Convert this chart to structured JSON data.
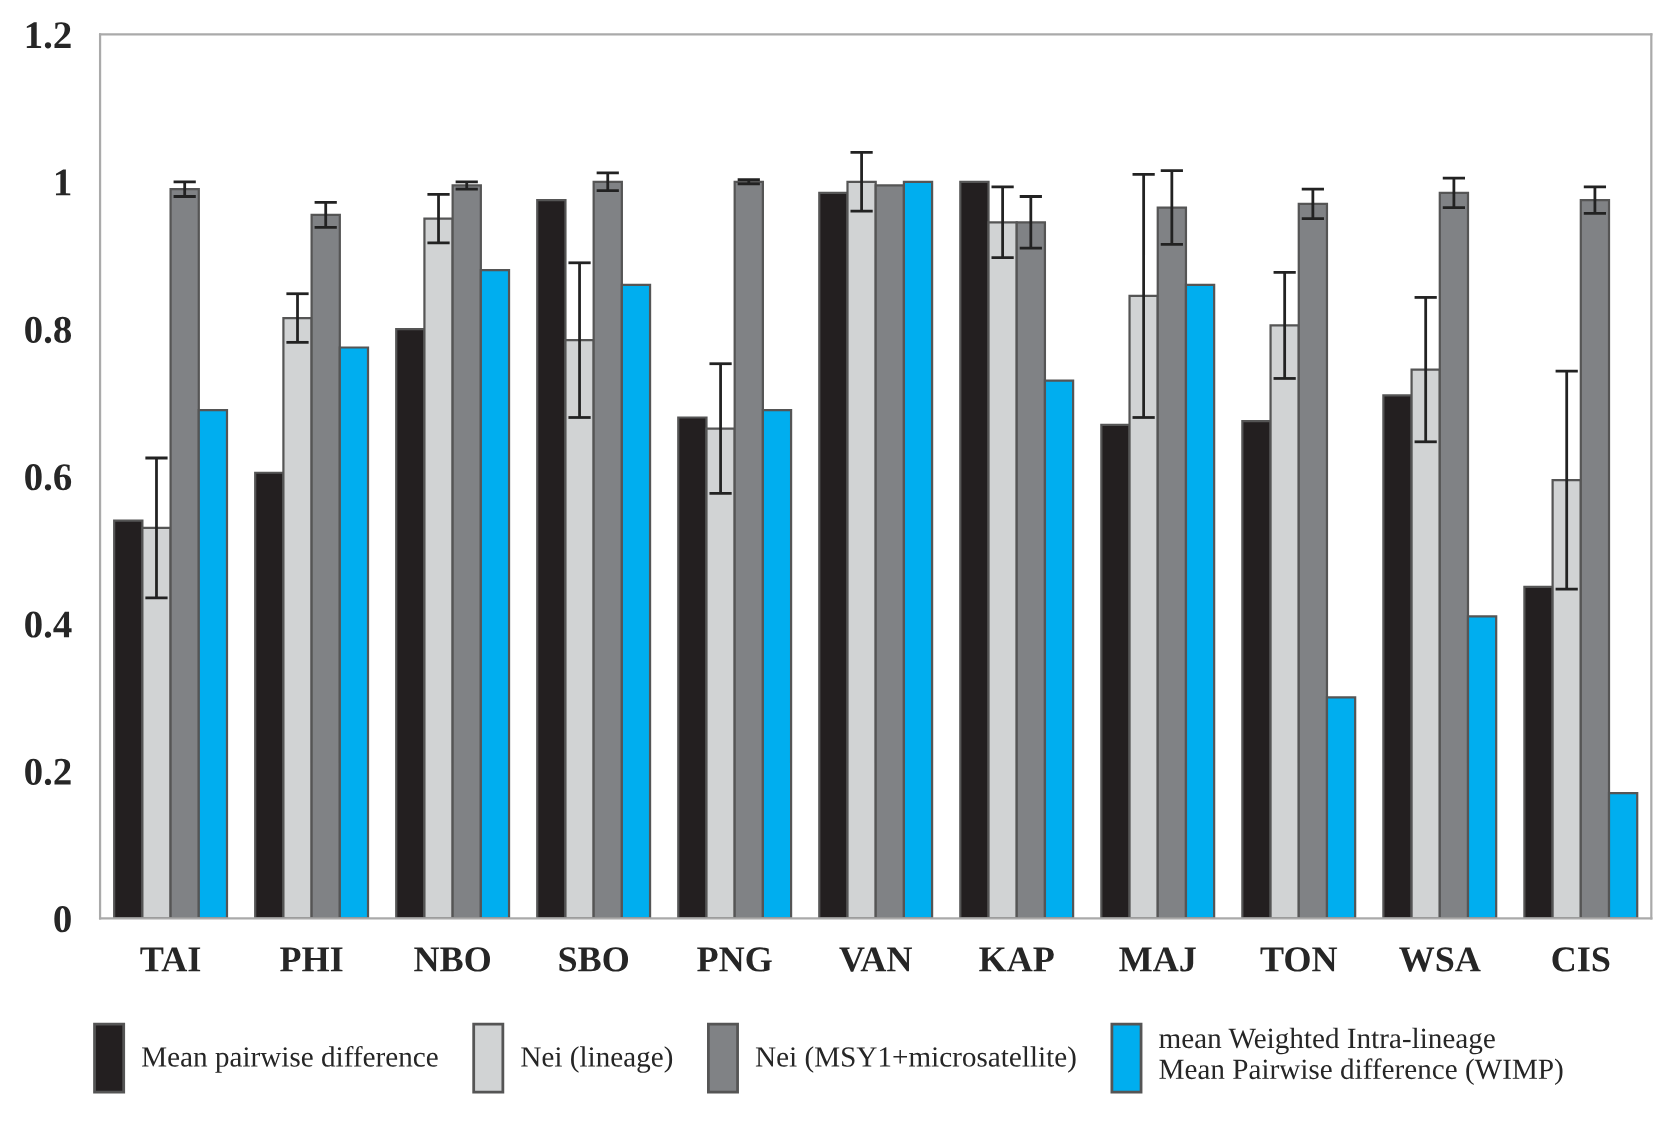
{
  "chart_data": {
    "type": "bar",
    "categories": [
      "TAI",
      "PHI",
      "NBO",
      "SBO",
      "PNG",
      "VAN",
      "KAP",
      "MAJ",
      "TON",
      "WSA",
      "CIS"
    ],
    "series": [
      {
        "name": "Mean pairwise difference",
        "color": "#231f20",
        "values": [
          0.54,
          0.605,
          0.8,
          0.975,
          0.68,
          0.985,
          1.0,
          0.67,
          0.675,
          0.71,
          0.45
        ]
      },
      {
        "name": "Nei (lineage)",
        "color": "#d1d3d4",
        "values": [
          0.53,
          0.815,
          0.95,
          0.785,
          0.665,
          1.0,
          0.945,
          0.845,
          0.805,
          0.745,
          0.595
        ],
        "errors": [
          0.095,
          0.033,
          0.033,
          0.105,
          0.088,
          0.04,
          0.048,
          0.165,
          0.072,
          0.098,
          0.148
        ]
      },
      {
        "name": "Nei (MSY1+microsatellite)",
        "color": "#808285",
        "values": [
          0.99,
          0.955,
          0.995,
          1.0,
          1.0,
          0.995,
          0.945,
          0.965,
          0.97,
          0.985,
          0.975
        ],
        "errors": [
          0.01,
          0.017,
          0.005,
          0.012,
          0.003,
          null,
          0.035,
          0.05,
          0.02,
          0.02,
          0.018
        ]
      },
      {
        "name": "mean Weighted Intra-lineage\nMean Pairwise difference (WIMP)",
        "color": "#00aeef",
        "values": [
          0.69,
          0.775,
          0.88,
          0.86,
          0.69,
          1.0,
          0.73,
          0.86,
          0.3,
          0.41,
          0.17
        ]
      }
    ],
    "ylim": [
      0,
      1.2
    ],
    "yticks": [
      0,
      0.2,
      0.4,
      0.6,
      0.8,
      1,
      1.2
    ],
    "grid": false,
    "legend": "bottom"
  }
}
